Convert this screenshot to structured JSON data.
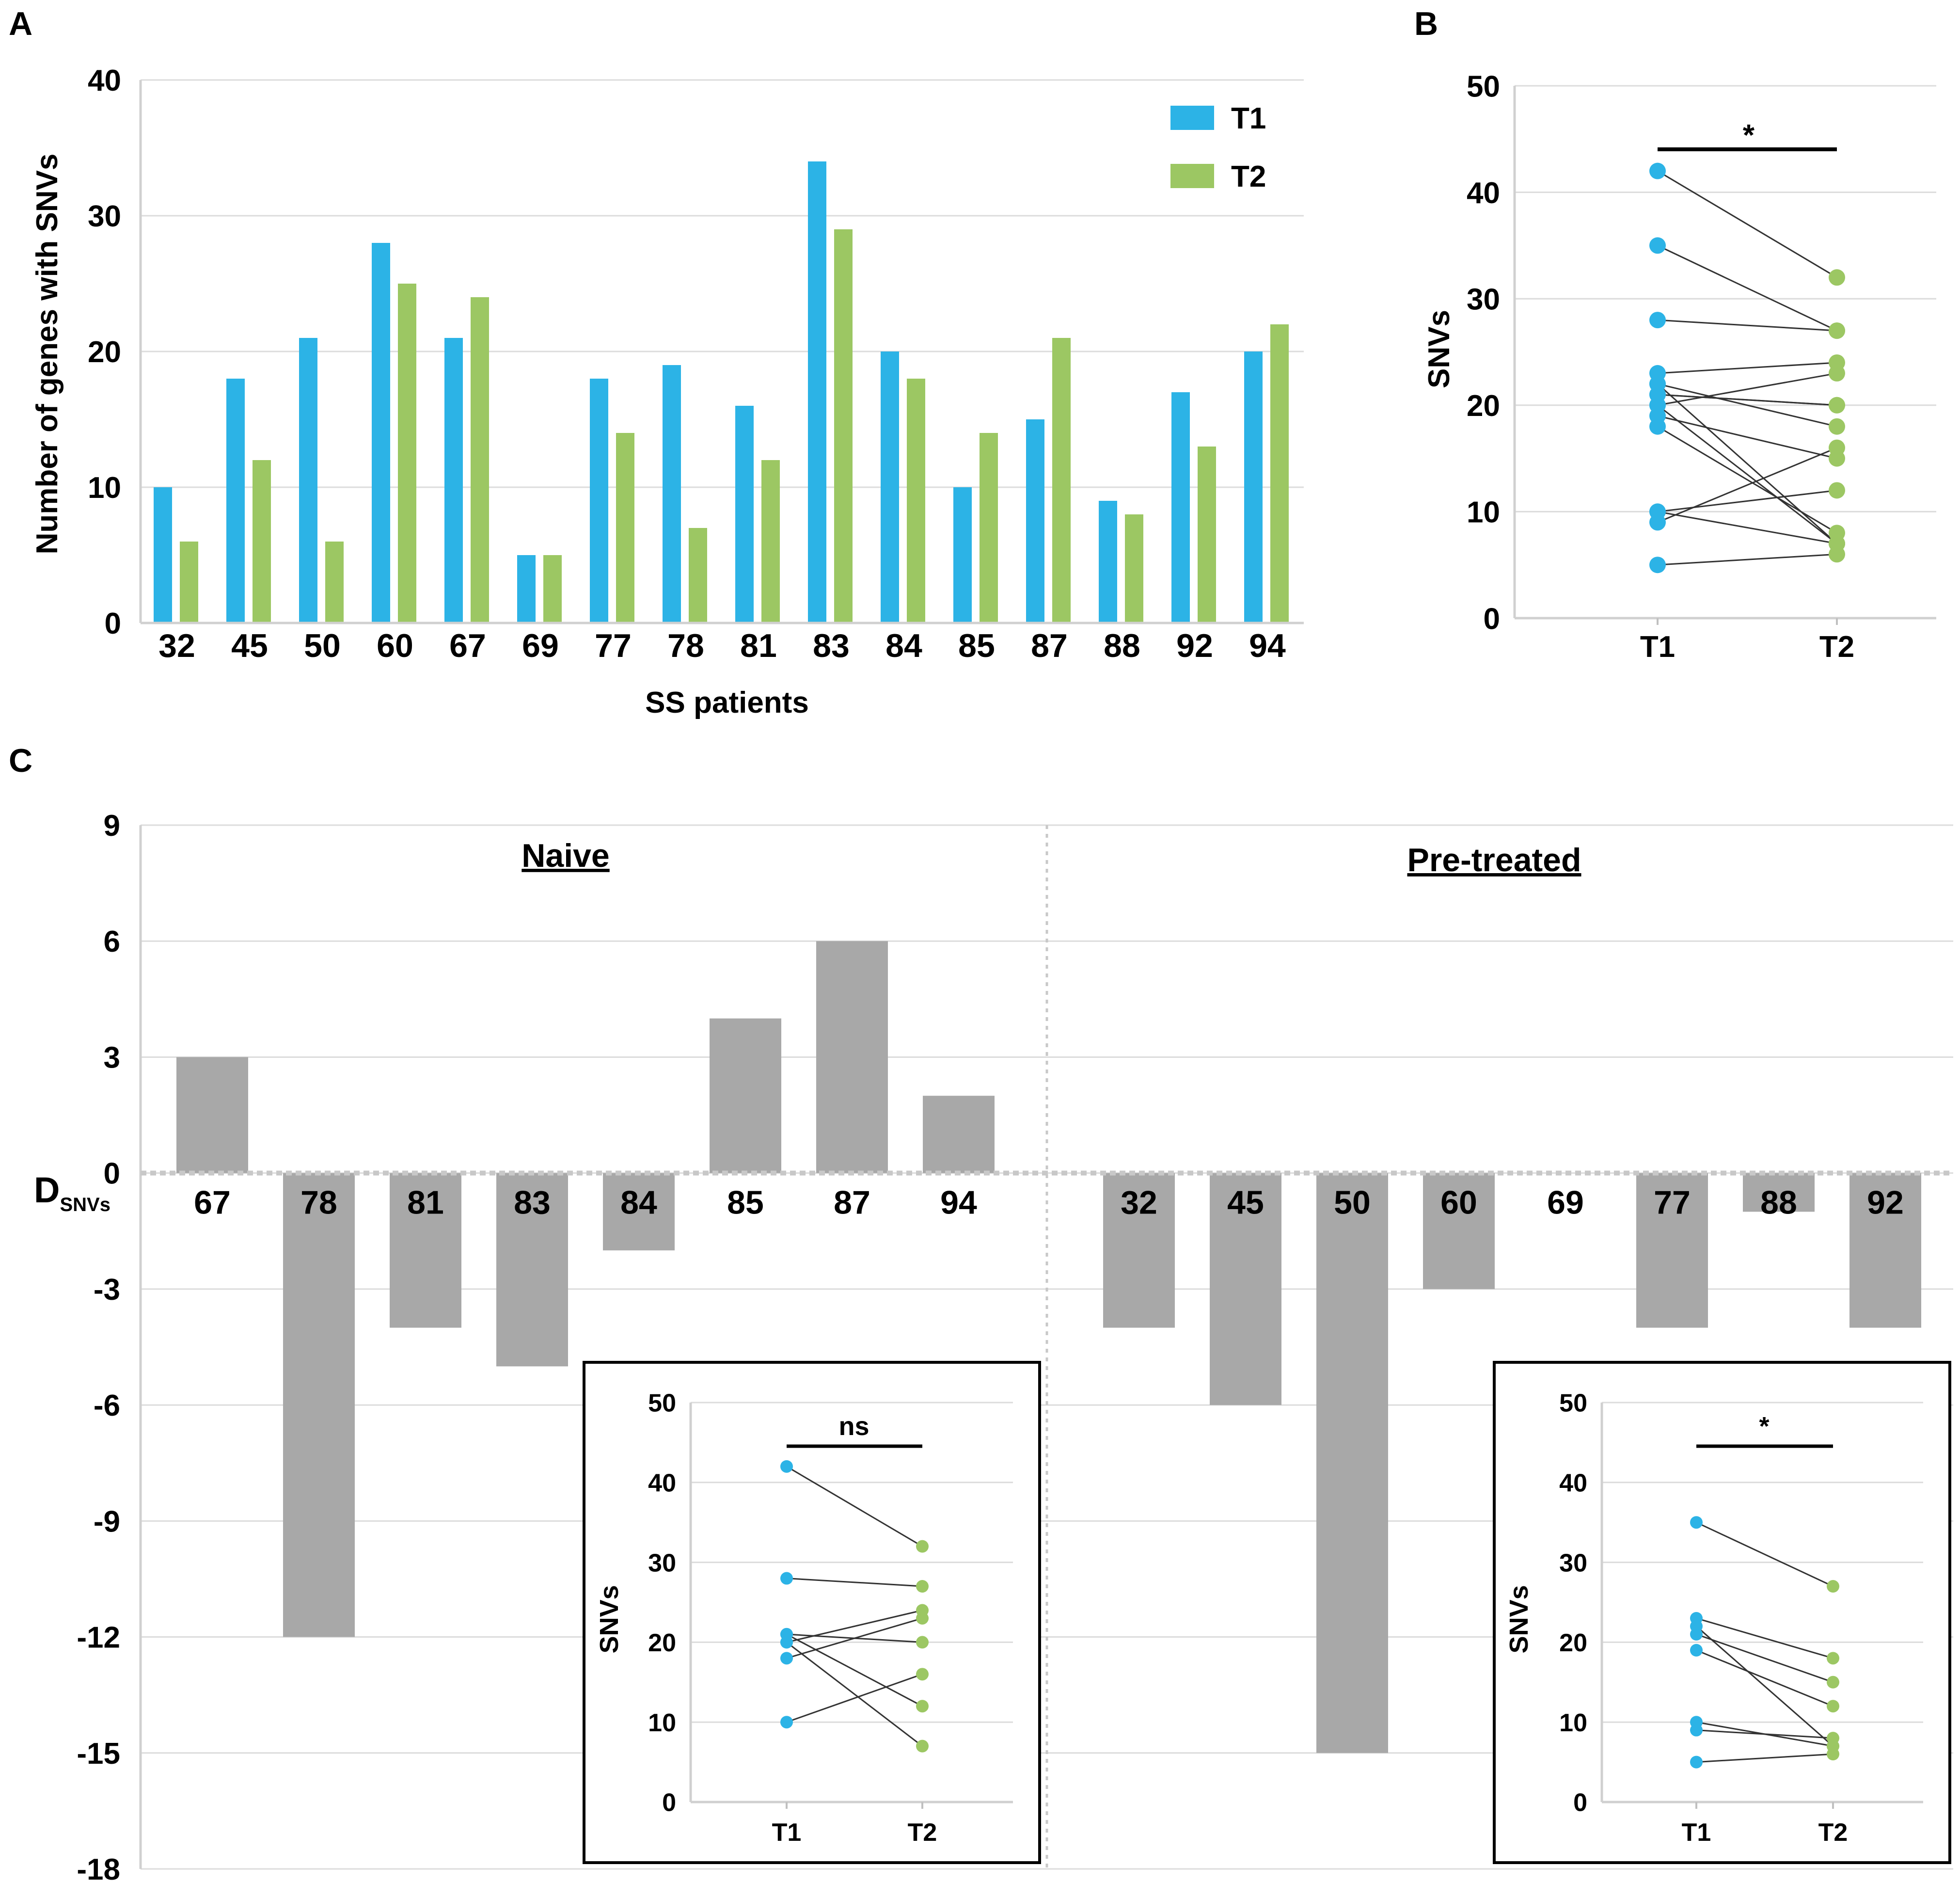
{
  "colors": {
    "t1": "#2cb3e6",
    "t2": "#9cc763",
    "diff": "#a8a8a8",
    "line": "#333333"
  },
  "chart_data": [
    {
      "panel": "A",
      "type": "bar",
      "title": "",
      "xlabel": "SS patients",
      "ylabel": "Number of genes with SNVs",
      "ylim": [
        0,
        40
      ],
      "yticks": [
        0,
        10,
        20,
        30,
        40
      ],
      "categories": [
        "32",
        "45",
        "50",
        "60",
        "67",
        "69",
        "77",
        "78",
        "81",
        "83",
        "84",
        "85",
        "87",
        "88",
        "92",
        "94"
      ],
      "series": [
        {
          "name": "T1",
          "values": [
            10,
            18,
            21,
            28,
            21,
            5,
            18,
            19,
            16,
            34,
            20,
            10,
            15,
            9,
            17,
            20
          ]
        },
        {
          "name": "T2",
          "values": [
            6,
            12,
            6,
            25,
            24,
            5,
            14,
            7,
            12,
            29,
            18,
            14,
            21,
            8,
            13,
            22
          ]
        }
      ],
      "legend": "top-right"
    },
    {
      "panel": "B",
      "type": "scatter",
      "title": "",
      "ylabel": "SNVs",
      "ylim": [
        0,
        50
      ],
      "yticks": [
        0,
        10,
        20,
        30,
        40,
        50
      ],
      "categories": [
        "T1",
        "T2"
      ],
      "significance": "*",
      "pairs": [
        [
          42,
          32
        ],
        [
          35,
          27
        ],
        [
          28,
          27
        ],
        [
          23,
          24
        ],
        [
          22,
          7
        ],
        [
          22,
          18
        ],
        [
          21,
          20
        ],
        [
          20,
          23
        ],
        [
          20,
          7
        ],
        [
          19,
          15
        ],
        [
          18,
          8
        ],
        [
          10,
          12
        ],
        [
          10,
          7
        ],
        [
          9,
          16
        ],
        [
          5,
          6
        ],
        [
          21,
          20
        ]
      ]
    },
    {
      "panel": "C",
      "type": "bar",
      "title": "",
      "ylabel_main": "D",
      "ylabel_sub": "SNVs",
      "ylim": [
        -18,
        9
      ],
      "yticks": [
        9,
        6,
        3,
        0,
        -3,
        -6,
        -9,
        -12,
        -15,
        -18
      ],
      "groups": [
        {
          "label": "Naive",
          "categories": [
            "67",
            "78",
            "81",
            "83",
            "84",
            "85",
            "87",
            "94"
          ],
          "values": [
            3,
            -12,
            -4,
            -5,
            -2,
            4,
            6,
            2
          ]
        },
        {
          "label": "Pre-treated",
          "categories": [
            "32",
            "45",
            "50",
            "60",
            "69",
            "77",
            "88",
            "92"
          ],
          "values": [
            -4,
            -6,
            -15,
            -3,
            0,
            -4,
            -1,
            -4
          ]
        }
      ]
    },
    {
      "panel": "C-inset-naive",
      "type": "scatter",
      "ylabel": "SNVs",
      "ylim": [
        0,
        50
      ],
      "yticks": [
        0,
        10,
        20,
        30,
        40,
        50
      ],
      "categories": [
        "T1",
        "T2"
      ],
      "significance": "ns",
      "pairs": [
        [
          42,
          32
        ],
        [
          28,
          27
        ],
        [
          21,
          20
        ],
        [
          20,
          24
        ],
        [
          20,
          7
        ],
        [
          18,
          23
        ],
        [
          10,
          16
        ],
        [
          21,
          12
        ]
      ]
    },
    {
      "panel": "C-inset-pretreated",
      "type": "scatter",
      "ylabel": "SNVs",
      "ylim": [
        0,
        50
      ],
      "yticks": [
        0,
        10,
        20,
        30,
        40,
        50
      ],
      "categories": [
        "T1",
        "T2"
      ],
      "significance": "*",
      "pairs": [
        [
          35,
          27
        ],
        [
          23,
          18
        ],
        [
          22,
          7
        ],
        [
          21,
          15
        ],
        [
          19,
          12
        ],
        [
          10,
          7
        ],
        [
          9,
          8
        ],
        [
          5,
          6
        ]
      ]
    }
  ]
}
